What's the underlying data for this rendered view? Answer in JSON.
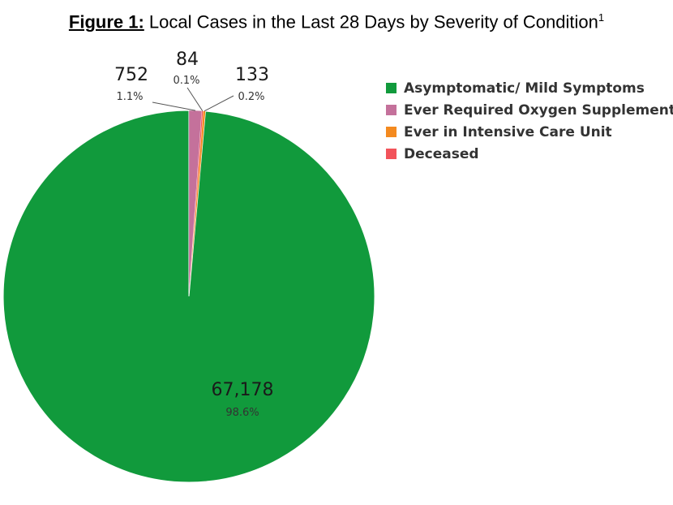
{
  "title": {
    "label": "Figure 1:",
    "text": " Local Cases in the Last 28 Days by Severity of Condition",
    "superscript": "1"
  },
  "chart_data": {
    "type": "pie",
    "categories": [
      "Asymptomatic/ Mild Symptoms",
      "Ever Required Oxygen Supplementation",
      "Ever in Intensive Care Unit",
      "Deceased"
    ],
    "values": [
      67178,
      752,
      133,
      84
    ],
    "value_labels": [
      "67,178",
      "752",
      "133",
      "84"
    ],
    "percent_labels": [
      "98.6%",
      "1.1%",
      "0.2%",
      "0.1%"
    ],
    "colors": [
      "#119a3c",
      "#c4719b",
      "#f48a1f",
      "#f2535a"
    ],
    "legend_position": "right"
  }
}
